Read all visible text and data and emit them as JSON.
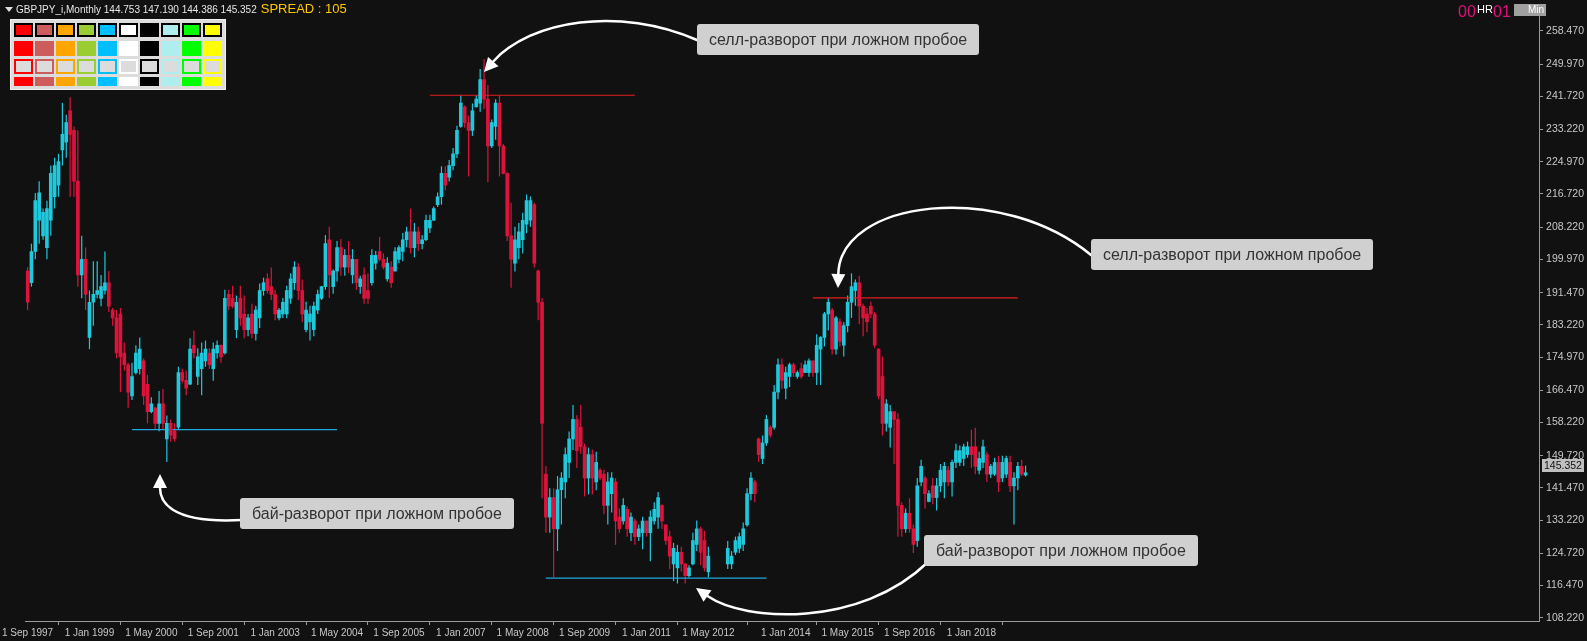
{
  "chart_data": {
    "type": "candlestick",
    "title": "GBPJPY_i,Monthly  144.753 147.190 144.386 145.352",
    "subtitle": "SPREAD : 105",
    "x": [
      "1997-09",
      "1997-10",
      "1997-11",
      "1997-12",
      "1998-01",
      "1998-02",
      "1998-03",
      "1998-04",
      "1998-05",
      "1998-06",
      "1998-07",
      "1998-08",
      "1998-09",
      "1998-10",
      "1998-11",
      "1998-12",
      "1999-01",
      "1999-02",
      "1999-03",
      "1999-04",
      "1999-05",
      "1999-06",
      "1999-07",
      "1999-08",
      "1999-09",
      "1999-10",
      "1999-11",
      "1999-12",
      "2000-01",
      "2000-02",
      "2000-03",
      "2000-04",
      "2000-05",
      "2000-06",
      "2000-07",
      "2000-08",
      "2000-09",
      "2000-10",
      "2000-11",
      "2000-12",
      "2001-01",
      "2001-02",
      "2001-03",
      "2001-04",
      "2001-05",
      "2001-06",
      "2001-07",
      "2001-08",
      "2001-09",
      "2001-10",
      "2001-11",
      "2001-12",
      "2002-01",
      "2002-02",
      "2002-03",
      "2002-04",
      "2002-05",
      "2002-06",
      "2002-07",
      "2002-08",
      "2002-09",
      "2002-10",
      "2002-11",
      "2002-12",
      "2003-01",
      "2003-02",
      "2003-03",
      "2003-04",
      "2003-05",
      "2003-06",
      "2003-07",
      "2003-08",
      "2003-09",
      "2003-10",
      "2003-11",
      "2003-12",
      "2004-01",
      "2004-02",
      "2004-03",
      "2004-04",
      "2004-05",
      "2004-06",
      "2004-07",
      "2004-08",
      "2004-09",
      "2004-10",
      "2004-11",
      "2004-12",
      "2005-01",
      "2005-02",
      "2005-03",
      "2005-04",
      "2005-05",
      "2005-06",
      "2005-07",
      "2005-08",
      "2005-09",
      "2005-10",
      "2005-11",
      "2005-12",
      "2006-01",
      "2006-02",
      "2006-03",
      "2006-04",
      "2006-05",
      "2006-06",
      "2006-07",
      "2006-08",
      "2006-09",
      "2006-10",
      "2006-11",
      "2006-12",
      "2007-01",
      "2007-02",
      "2007-03",
      "2007-04",
      "2007-05",
      "2007-06",
      "2007-07",
      "2007-08",
      "2007-09",
      "2007-10",
      "2007-11",
      "2007-12",
      "2008-01",
      "2008-02",
      "2008-03",
      "2008-04",
      "2008-05",
      "2008-06",
      "2008-07",
      "2008-08",
      "2008-09",
      "2008-10",
      "2008-11",
      "2008-12",
      "2009-01",
      "2009-02",
      "2009-03",
      "2009-04",
      "2009-05",
      "2009-06",
      "2009-07",
      "2009-08",
      "2009-09",
      "2009-10",
      "2009-11",
      "2009-12",
      "2010-01",
      "2010-02",
      "2010-03",
      "2010-04",
      "2010-05",
      "2010-06",
      "2010-07",
      "2010-08",
      "2010-09",
      "2010-10",
      "2010-11",
      "2010-12",
      "2011-01",
      "2011-02",
      "2011-03",
      "2011-04",
      "2011-05",
      "2011-06",
      "2011-07",
      "2011-08",
      "2011-09",
      "2011-10",
      "2011-11",
      "2011-12",
      "2012-01",
      "2012-02",
      "2012-03",
      "2012-04",
      "2012-05",
      "2012-10",
      "2012-11",
      "2012-12",
      "2013-01",
      "2013-02",
      "2013-03",
      "2013-04",
      "2013-05",
      "2013-06",
      "2013-07",
      "2013-08",
      "2013-09",
      "2013-10",
      "2013-11",
      "2013-12",
      "2014-01",
      "2014-02",
      "2014-03",
      "2014-04",
      "2014-05",
      "2014-06",
      "2014-07",
      "2014-08",
      "2014-09",
      "2014-10",
      "2014-11",
      "2014-12",
      "2015-01",
      "2015-02",
      "2015-03",
      "2015-04",
      "2015-05",
      "2015-06",
      "2015-07",
      "2015-08",
      "2015-09",
      "2015-10",
      "2015-11",
      "2015-12",
      "2016-01",
      "2016-02",
      "2016-03",
      "2016-04",
      "2016-05",
      "2016-06",
      "2016-07",
      "2016-08",
      "2016-09",
      "2016-10",
      "2016-11",
      "2016-12",
      "2017-01",
      "2017-02",
      "2017-03",
      "2017-04",
      "2017-05",
      "2017-06",
      "2017-07",
      "2017-08",
      "2017-09",
      "2017-10",
      "2017-11",
      "2017-12",
      "2018-01",
      "2018-02",
      "2018-03",
      "2018-04",
      "2018-05",
      "2018-06",
      "2018-07",
      "2018-08",
      "2018-09",
      "2018-10",
      "2018-11",
      "2018-12",
      "2019-01",
      "2019-02",
      "2019-03"
    ],
    "ohlc": [
      [
        197,
        198,
        187,
        189
      ],
      [
        194,
        204,
        193,
        202
      ],
      [
        202,
        217,
        200,
        215
      ],
      [
        210,
        220,
        204,
        217
      ],
      [
        206,
        213,
        205,
        212
      ],
      [
        203,
        215,
        200,
        213
      ],
      [
        210,
        224,
        206,
        222
      ],
      [
        216,
        226,
        213,
        224
      ],
      [
        219,
        227,
        216,
        225
      ],
      [
        228,
        240,
        224,
        232
      ],
      [
        230,
        237,
        226,
        235
      ],
      [
        238,
        241.5,
        216,
        232
      ],
      [
        233,
        234,
        216,
        220
      ],
      [
        220,
        233,
        193,
        196
      ],
      [
        196,
        206,
        190,
        200
      ],
      [
        200,
        203,
        187,
        191
      ],
      [
        180,
        192,
        177,
        189
      ],
      [
        189,
        199.5,
        183,
        191
      ],
      [
        191,
        199.5,
        190,
        192
      ],
      [
        190,
        196,
        188,
        193
      ],
      [
        192,
        202,
        191,
        194
      ],
      [
        194,
        197,
        186.5,
        188
      ],
      [
        187,
        187.5,
        183,
        185
      ],
      [
        185,
        187,
        174.6,
        176
      ],
      [
        186,
        187.5,
        166,
        175
      ],
      [
        176,
        178.7,
        171.5,
        173
      ],
      [
        173,
        173.5,
        162,
        166
      ],
      [
        165,
        173.5,
        164,
        170
      ],
      [
        171,
        178,
        170.5,
        176
      ],
      [
        172,
        180,
        170.5,
        177
      ],
      [
        174,
        174.6,
        162.7,
        165
      ],
      [
        168,
        170.4,
        158,
        161
      ],
      [
        161,
        164.7,
        160.6,
        163
      ],
      [
        162,
        162.1,
        156.4,
        158
      ],
      [
        158,
        166.3,
        156,
        163
      ],
      [
        163,
        166.8,
        156.4,
        158
      ],
      [
        154,
        160,
        148.1,
        158
      ],
      [
        158,
        159,
        153.3,
        155
      ],
      [
        156,
        158,
        153.3,
        154
      ],
      [
        157,
        172.5,
        156.4,
        171
      ],
      [
        171,
        172,
        168.4,
        169
      ],
      [
        169,
        171.5,
        165.2,
        167
      ],
      [
        168,
        179.8,
        167.8,
        177
      ],
      [
        178,
        181.8,
        174.6,
        176
      ],
      [
        170,
        177.2,
        167.8,
        175
      ],
      [
        172,
        178.7,
        165.2,
        176
      ],
      [
        174,
        179.2,
        172.5,
        177
      ],
      [
        176,
        177.2,
        172,
        173
      ],
      [
        172,
        178.7,
        168.9,
        177
      ],
      [
        176,
        179.2,
        174.6,
        178
      ],
      [
        178,
        178.2,
        173.5,
        175
      ],
      [
        176,
        192.2,
        175.6,
        190
      ],
      [
        191,
        192.2,
        187,
        188
      ],
      [
        190,
        193.2,
        187.5,
        188
      ],
      [
        182,
        190.7,
        179.8,
        189
      ],
      [
        190,
        193.2,
        182.9,
        185
      ],
      [
        186,
        190.7,
        179.8,
        182
      ],
      [
        182,
        186,
        180.3,
        185
      ],
      [
        186,
        188.6,
        179.8,
        181
      ],
      [
        181,
        188.1,
        179.2,
        187
      ],
      [
        185,
        193.8,
        182.4,
        192
      ],
      [
        192,
        195.3,
        190.7,
        194
      ],
      [
        195,
        196.4,
        191.2,
        192
      ],
      [
        193,
        197.9,
        189.6,
        191
      ],
      [
        191,
        192.2,
        184.4,
        186
      ],
      [
        185,
        187.5,
        184.4,
        187
      ],
      [
        186,
        190.1,
        185,
        189
      ],
      [
        186,
        193.2,
        184.9,
        192
      ],
      [
        190,
        196.4,
        188.6,
        195
      ],
      [
        194,
        199.5,
        192.2,
        198
      ],
      [
        198,
        199,
        189.6,
        192
      ],
      [
        192,
        194.8,
        183.9,
        186
      ],
      [
        182,
        189.1,
        181.3,
        187
      ],
      [
        184,
        188.1,
        179.2,
        186
      ],
      [
        182,
        189.1,
        180.3,
        188
      ],
      [
        187,
        192.2,
        186,
        191
      ],
      [
        190,
        193.2,
        189.6,
        193
      ],
      [
        193,
        206.2,
        192.2,
        204
      ],
      [
        205,
        208.3,
        190.1,
        196
      ],
      [
        193,
        197.4,
        191.2,
        197
      ],
      [
        197,
        204.7,
        194.3,
        203
      ],
      [
        203,
        205.2,
        195.8,
        198
      ],
      [
        198,
        202.6,
        195.8,
        201
      ],
      [
        201,
        204.7,
        196.4,
        198
      ],
      [
        196,
        202.6,
        193.8,
        200
      ],
      [
        200,
        200,
        192.2,
        194
      ],
      [
        193,
        195.8,
        191.2,
        195
      ],
      [
        196,
        197.9,
        188.6,
        190
      ],
      [
        192,
        196.4,
        188.6,
        190
      ],
      [
        194,
        202.6,
        193.3,
        201
      ],
      [
        199,
        202.1,
        197.4,
        201
      ],
      [
        202,
        205.7,
        199.5,
        200
      ],
      [
        200,
        201.5,
        197.4,
        198
      ],
      [
        195,
        200.5,
        194.3,
        199
      ],
      [
        198,
        199.5,
        192.7,
        194
      ],
      [
        197,
        203.1,
        196.9,
        202
      ],
      [
        200,
        203.6,
        199,
        203
      ],
      [
        202,
        206.7,
        199.5,
        205
      ],
      [
        205,
        208.3,
        203.1,
        207
      ],
      [
        207,
        213,
        201.5,
        203
      ],
      [
        203,
        209.3,
        200.5,
        207
      ],
      [
        207,
        208.3,
        202.1,
        204
      ],
      [
        204,
        206.2,
        202.6,
        205
      ],
      [
        205,
        211.4,
        204.7,
        210
      ],
      [
        208,
        211.4,
        206.7,
        210
      ],
      [
        210,
        213.5,
        209.8,
        213
      ],
      [
        214,
        217.1,
        213.4,
        216
      ],
      [
        216,
        223.8,
        214,
        222
      ],
      [
        222,
        223.8,
        217.6,
        219
      ],
      [
        221,
        225.4,
        219.9,
        224
      ],
      [
        224,
        228.5,
        222.8,
        227
      ],
      [
        227,
        234.2,
        225.9,
        233
      ],
      [
        234,
        242,
        233.7,
        240
      ],
      [
        239,
        239.4,
        233.7,
        235
      ],
      [
        235,
        236.8,
        221.2,
        233
      ],
      [
        233,
        239.9,
        231.6,
        238
      ],
      [
        239,
        242,
        238.9,
        241
      ],
      [
        240,
        248.7,
        237.8,
        246
      ],
      [
        246,
        251.3,
        238.4,
        241
      ],
      [
        241,
        244.6,
        219.7,
        229
      ],
      [
        229,
        235.8,
        228.5,
        235
      ],
      [
        234,
        241,
        230.6,
        240
      ],
      [
        240,
        242,
        221.2,
        229
      ],
      [
        229,
        229.5,
        221.8,
        222
      ],
      [
        222,
        222.3,
        204.7,
        206
      ],
      [
        206,
        214.5,
        192.7,
        200
      ],
      [
        199,
        208.3,
        196.9,
        205
      ],
      [
        203,
        209.3,
        200,
        207
      ],
      [
        205,
        211.9,
        201.5,
        210
      ],
      [
        209,
        216.6,
        206.7,
        215
      ],
      [
        210,
        216.1,
        208.3,
        215
      ],
      [
        214,
        214.5,
        197.9,
        199
      ],
      [
        197,
        197.4,
        184.4,
        189
      ],
      [
        189,
        190.1,
        138.8,
        158
      ],
      [
        145,
        147.1,
        130,
        134
      ],
      [
        134,
        141.4,
        130,
        139
      ],
      [
        139,
        141.4,
        118.6,
        131
      ],
      [
        131,
        144.5,
        125.3,
        141
      ],
      [
        141,
        145.5,
        132.1,
        144
      ],
      [
        143,
        151.8,
        138.8,
        150
      ],
      [
        148,
        155.9,
        144,
        154
      ],
      [
        154,
        162.7,
        151.2,
        159
      ],
      [
        159,
        160.1,
        146.6,
        151
      ],
      [
        157,
        162.7,
        150.2,
        152
      ],
      [
        152,
        152.8,
        139.3,
        144
      ],
      [
        144,
        151.8,
        139.8,
        150
      ],
      [
        150,
        151.3,
        139.8,
        144
      ],
      [
        143,
        150.7,
        140.9,
        148
      ],
      [
        146,
        146.6,
        143.5,
        144
      ],
      [
        145,
        146.1,
        134.7,
        137
      ],
      [
        137,
        145.5,
        132.1,
        143
      ],
      [
        140,
        145.5,
        135.2,
        144
      ],
      [
        143,
        144,
        126.9,
        133
      ],
      [
        134,
        136.2,
        130,
        131
      ],
      [
        133,
        138.8,
        132.1,
        137
      ],
      [
        136,
        136.7,
        129,
        131
      ],
      [
        130,
        135.2,
        127.9,
        134
      ],
      [
        133,
        133.6,
        126.9,
        129
      ],
      [
        129,
        132.1,
        127.9,
        131
      ],
      [
        130,
        134.1,
        125.8,
        133
      ],
      [
        133,
        133.1,
        129,
        130
      ],
      [
        130,
        135.7,
        122.7,
        134
      ],
      [
        133,
        137.8,
        132.1,
        136
      ],
      [
        134,
        140.4,
        131,
        139
      ],
      [
        137,
        137.3,
        131,
        133
      ],
      [
        132,
        132.1,
        126.9,
        128
      ],
      [
        129,
        130.5,
        120.7,
        124
      ],
      [
        122,
        127.4,
        117.6,
        126
      ],
      [
        121,
        126.9,
        117,
        125
      ],
      [
        125,
        126.4,
        120.1,
        122
      ],
      [
        122,
        122.2,
        117,
        119
      ],
      [
        119,
        121.7,
        118.6,
        121
      ],
      [
        122,
        130,
        121.7,
        128
      ],
      [
        127,
        133.1,
        125.3,
        131
      ],
      [
        131,
        131.5,
        121.7,
        125
      ],
      [
        128,
        130.5,
        120.1,
        121
      ],
      [
        120,
        126.4,
        118.6,
        124
      ],
      [
        122,
        127.9,
        120.7,
        126
      ],
      [
        122,
        125.3,
        120.7,
        124
      ],
      [
        125,
        129,
        124.3,
        128
      ],
      [
        126,
        130,
        124.8,
        129
      ],
      [
        127,
        132.6,
        125.3,
        131
      ],
      [
        132,
        141.4,
        131.5,
        140
      ],
      [
        140,
        145.5,
        138.3,
        144
      ],
      [
        143,
        143.5,
        137.8,
        140
      ],
      [
        154,
        154.4,
        148.1,
        150
      ],
      [
        149,
        154.9,
        147.6,
        153
      ],
      [
        153,
        160.1,
        152.3,
        159
      ],
      [
        157,
        157.5,
        154.4,
        155
      ],
      [
        157,
        167.8,
        156.4,
        166
      ],
      [
        166,
        174.6,
        164.2,
        173
      ],
      [
        173,
        174.6,
        166.8,
        169
      ],
      [
        167,
        172.5,
        164.2,
        171
      ],
      [
        170,
        173.5,
        167.3,
        173
      ],
      [
        173,
        173.5,
        169.9,
        171
      ],
      [
        170,
        171.5,
        169.4,
        171
      ],
      [
        172,
        173.5,
        169.4,
        170
      ],
      [
        171,
        174.1,
        170.9,
        173
      ],
      [
        171,
        174.6,
        169.9,
        174
      ],
      [
        174,
        174.1,
        169.9,
        171
      ],
      [
        171,
        180.8,
        167.8,
        178
      ],
      [
        177,
        180.3,
        167.8,
        180
      ],
      [
        180,
        186.5,
        177.7,
        186
      ],
      [
        186,
        190.1,
        181.8,
        189
      ],
      [
        187,
        187.5,
        175.6,
        177
      ],
      [
        177,
        185.5,
        175.6,
        185
      ],
      [
        184,
        184.9,
        177.7,
        179
      ],
      [
        178,
        183.9,
        175.1,
        183
      ],
      [
        183,
        190.7,
        181.3,
        189
      ],
      [
        189,
        196.4,
        185,
        193
      ],
      [
        192,
        194.8,
        188.1,
        194
      ],
      [
        194,
        195.8,
        183.4,
        188
      ],
      [
        188,
        188.6,
        180.3,
        185
      ],
      [
        186,
        187.5,
        181.3,
        184
      ],
      [
        188,
        189.1,
        185,
        186
      ],
      [
        186,
        186.5,
        177.2,
        178
      ],
      [
        177,
        177.2,
        164.2,
        165
      ],
      [
        170,
        175.1,
        154.9,
        158
      ],
      [
        158,
        164.2,
        155.9,
        163
      ],
      [
        157,
        162.7,
        151.8,
        161
      ],
      [
        161,
        161.1,
        147.6,
        159
      ],
      [
        159,
        160.6,
        129,
        137
      ],
      [
        137,
        137.8,
        129,
        131
      ],
      [
        131,
        136.2,
        130,
        135
      ],
      [
        135,
        138.8,
        130,
        131
      ],
      [
        131,
        132.1,
        124.8,
        127
      ],
      [
        128,
        144,
        126.4,
        142
      ],
      [
        143,
        148.7,
        141.9,
        147
      ],
      [
        144,
        144.5,
        136.2,
        140
      ],
      [
        138,
        140.9,
        137.8,
        140
      ],
      [
        142,
        144,
        137.3,
        139
      ],
      [
        139,
        144,
        135.7,
        142
      ],
      [
        142,
        147.6,
        140.4,
        146
      ],
      [
        143,
        148.1,
        138.8,
        147
      ],
      [
        146,
        147.1,
        141.9,
        143
      ],
      [
        143,
        148.7,
        139.3,
        148
      ],
      [
        148,
        152.8,
        146.6,
        151
      ],
      [
        148,
        152.3,
        147.1,
        151
      ],
      [
        149,
        152.8,
        147.1,
        152
      ],
      [
        150,
        153.3,
        149.2,
        152
      ],
      [
        152,
        156.4,
        146.6,
        150
      ],
      [
        152,
        156.9,
        145,
        147
      ],
      [
        146,
        150.7,
        145,
        149
      ],
      [
        148,
        153.8,
        146.6,
        152
      ],
      [
        150,
        150.7,
        143,
        145
      ],
      [
        145,
        147.6,
        144,
        147
      ],
      [
        145,
        149.2,
        144.5,
        148
      ],
      [
        148,
        149.7,
        140.4,
        143
      ],
      [
        144,
        149.7,
        143,
        148
      ],
      [
        145,
        149.7,
        144,
        149
      ],
      [
        148,
        149.7,
        140.4,
        142
      ],
      [
        142,
        145.5,
        132.1,
        144
      ],
      [
        144,
        148.1,
        140.9,
        147
      ],
      [
        147,
        148.7,
        144.5,
        145
      ],
      [
        144.753,
        147.19,
        144.386,
        145.352
      ]
    ],
    "colors": [
      "#dc143c",
      "#20c8dc",
      "#20c8dc",
      "#20c8dc",
      "#20c8dc",
      "#20c8dc",
      "#20c8dc",
      "#20c8dc",
      "#20c8dc",
      "#20c8dc",
      "#20c8dc",
      "#dc143c",
      "#dc143c",
      "#dc143c",
      "#20c8dc",
      "#dc143c",
      "#20c8dc",
      "#20c8dc",
      "#20c8dc",
      "#20c8dc",
      "#20c8dc",
      "#dc143c",
      "#dc143c",
      "#dc143c",
      "#dc143c",
      "#dc143c",
      "#dc143c",
      "#20c8dc",
      "#20c8dc",
      "#20c8dc",
      "#dc143c",
      "#dc143c",
      "#20c8dc",
      "#dc143c",
      "#20c8dc",
      "#dc143c",
      "#20c8dc",
      "#dc143c",
      "#dc143c",
      "#20c8dc",
      "#dc143c",
      "#dc143c",
      "#20c8dc",
      "#dc143c",
      "#20c8dc",
      "#20c8dc",
      "#20c8dc",
      "#dc143c",
      "#20c8dc",
      "#20c8dc",
      "#dc143c",
      "#20c8dc",
      "#dc143c",
      "#dc143c",
      "#20c8dc",
      "#dc143c",
      "#dc143c",
      "#20c8dc",
      "#dc143c",
      "#20c8dc",
      "#20c8dc",
      "#20c8dc",
      "#dc143c",
      "#dc143c",
      "#dc143c",
      "#20c8dc",
      "#20c8dc",
      "#20c8dc",
      "#20c8dc",
      "#20c8dc",
      "#dc143c",
      "#dc143c",
      "#20c8dc",
      "#20c8dc",
      "#20c8dc",
      "#20c8dc",
      "#20c8dc",
      "#20c8dc",
      "#dc143c",
      "#20c8dc",
      "#20c8dc",
      "#dc143c",
      "#20c8dc",
      "#dc143c",
      "#20c8dc",
      "#dc143c",
      "#20c8dc",
      "#dc143c",
      "#dc143c",
      "#20c8dc",
      "#20c8dc",
      "#dc143c",
      "#dc143c",
      "#20c8dc",
      "#dc143c",
      "#20c8dc",
      "#20c8dc",
      "#20c8dc",
      "#20c8dc",
      "#dc143c",
      "#20c8dc",
      "#dc143c",
      "#20c8dc",
      "#20c8dc",
      "#20c8dc",
      "#20c8dc",
      "#20c8dc",
      "#20c8dc",
      "#dc143c",
      "#20c8dc",
      "#20c8dc",
      "#20c8dc",
      "#20c8dc",
      "#dc143c",
      "#dc143c",
      "#20c8dc",
      "#20c8dc",
      "#20c8dc",
      "#dc143c",
      "#dc143c",
      "#20c8dc",
      "#20c8dc",
      "#dc143c",
      "#dc143c",
      "#dc143c",
      "#dc143c",
      "#20c8dc",
      "#20c8dc",
      "#20c8dc",
      "#20c8dc",
      "#20c8dc",
      "#dc143c",
      "#dc143c",
      "#dc143c",
      "#dc143c",
      "#20c8dc",
      "#dc143c",
      "#20c8dc",
      "#20c8dc",
      "#20c8dc",
      "#20c8dc",
      "#20c8dc",
      "#dc143c",
      "#dc143c",
      "#dc143c",
      "#20c8dc",
      "#dc143c",
      "#20c8dc",
      "#dc143c",
      "#dc143c",
      "#20c8dc",
      "#20c8dc",
      "#dc143c",
      "#dc143c",
      "#20c8dc",
      "#dc143c",
      "#20c8dc",
      "#dc143c",
      "#20c8dc",
      "#20c8dc",
      "#dc143c",
      "#20c8dc",
      "#20c8dc",
      "#20c8dc",
      "#dc143c",
      "#dc143c",
      "#dc143c",
      "#20c8dc",
      "#20c8dc",
      "#dc143c",
      "#dc143c",
      "#20c8dc",
      "#20c8dc",
      "#20c8dc",
      "#dc143c",
      "#dc143c",
      "#20c8dc",
      "#20c8dc",
      "#20c8dc",
      "#20c8dc",
      "#20c8dc",
      "#20c8dc",
      "#20c8dc",
      "#20c8dc",
      "#dc143c",
      "#dc143c",
      "#20c8dc",
      "#20c8dc",
      "#dc143c",
      "#20c8dc",
      "#20c8dc",
      "#dc143c",
      "#20c8dc",
      "#20c8dc",
      "#dc143c",
      "#20c8dc",
      "#dc143c",
      "#20c8dc",
      "#20c8dc",
      "#dc143c",
      "#20c8dc",
      "#20c8dc",
      "#20c8dc",
      "#20c8dc",
      "#dc143c",
      "#20c8dc",
      "#dc143c",
      "#20c8dc",
      "#20c8dc",
      "#20c8dc",
      "#20c8dc",
      "#dc143c",
      "#dc143c",
      "#dc143c",
      "#dc143c",
      "#dc143c",
      "#dc143c",
      "#dc143c",
      "#20c8dc",
      "#20c8dc",
      "#dc143c",
      "#dc143c",
      "#dc143c",
      "#20c8dc",
      "#dc143c",
      "#dc143c",
      "#20c8dc",
      "#20c8dc",
      "#dc143c",
      "#20c8dc",
      "#dc143c",
      "#20c8dc",
      "#20c8dc",
      "#20c8dc",
      "#dc143c",
      "#20c8dc",
      "#20c8dc",
      "#20c8dc",
      "#20c8dc",
      "#20c8dc",
      "#dc143c",
      "#dc143c",
      "#20c8dc",
      "#20c8dc",
      "#dc143c",
      "#20c8dc",
      "#20c8dc",
      "#dc143c",
      "#20c8dc",
      "#20c8dc",
      "#dc143c",
      "#20c8dc",
      "#20c8dc",
      "#dc143c",
      "#20c8dc"
    ],
    "series": [
      {
        "type": "line",
        "color": "#e01e1e",
        "x": [
          "2006-05",
          "2010-10"
        ],
        "values": [
          242.0,
          242.0
        ]
      },
      {
        "type": "line",
        "color": "#20a8e0",
        "x": [
          "1999-12",
          "2004-05"
        ],
        "values": [
          156.4,
          156.4
        ]
      },
      {
        "type": "line",
        "color": "#e01e1e",
        "x": [
          "2014-08",
          "2019-01"
        ],
        "values": [
          190.1,
          190.1
        ]
      },
      {
        "type": "line",
        "color": "#20a8e0",
        "x": [
          "2008-11",
          "2013-08"
        ],
        "values": [
          118.4,
          118.4
        ]
      }
    ],
    "xlim": [
      "1997-08-16",
      "2030-03-24"
    ],
    "xticks": [
      {
        "value": "1997-09-01",
        "label": "1 Sep 1997"
      },
      {
        "value": "1999-01-01",
        "label": "1 Jan 1999"
      },
      {
        "value": "2000-05-01",
        "label": "1 May 2000"
      },
      {
        "value": "2001-09-01",
        "label": "1 Sep 2001"
      },
      {
        "value": "2003-01-01",
        "label": "1 Jan 2003"
      },
      {
        "value": "2004-05-01",
        "label": "1 May 2004"
      },
      {
        "value": "2005-09-01",
        "label": "1 Sep 2005"
      },
      {
        "value": "2007-01-01",
        "label": "1 Jan 2007"
      },
      {
        "value": "2008-05-01",
        "label": "1 May 2008"
      },
      {
        "value": "2009-09-01",
        "label": "1 Sep 2009"
      },
      {
        "value": "2011-01-01",
        "label": "1 Jan 2011"
      },
      {
        "value": "2012-05-01",
        "label": "1 May 2012"
      },
      {
        "value": "2014-01-01",
        "label": "1 Jan 2014"
      },
      {
        "value": "2015-05-01",
        "label": "1 May 2015"
      },
      {
        "value": "2016-09-01",
        "label": "1 Sep 2016"
      },
      {
        "value": "2018-01-01",
        "label": "1 Jan 2018"
      }
    ],
    "ylim": [
      107.4,
      264.0
    ],
    "yticks": [
      {
        "value": 108.22,
        "label": "108.220"
      },
      {
        "value": 116.47,
        "label": "116.470"
      },
      {
        "value": 124.72,
        "label": "124.720"
      },
      {
        "value": 133.22,
        "label": "133.220"
      },
      {
        "value": 141.47,
        "label": "141.470"
      },
      {
        "value": 149.72,
        "label": "149.720"
      },
      {
        "value": 158.22,
        "label": "158.220"
      },
      {
        "value": 166.47,
        "label": "166.470"
      },
      {
        "value": 174.97,
        "label": "174.970"
      },
      {
        "value": 183.22,
        "label": "183.220"
      },
      {
        "value": 191.47,
        "label": "191.470"
      },
      {
        "value": 199.97,
        "label": "199.970"
      },
      {
        "value": 208.22,
        "label": "208.220"
      },
      {
        "value": 216.72,
        "label": "216.720"
      },
      {
        "value": 224.97,
        "label": "224.970"
      },
      {
        "value": 233.22,
        "label": "233.220"
      },
      {
        "value": 241.72,
        "label": "241.720"
      },
      {
        "value": 249.97,
        "label": "249.970"
      },
      {
        "value": 258.47,
        "label": "258.470"
      }
    ],
    "annotations": [
      "селл-разворот при ложном пробое",
      "селл-разворот при ложном пробое",
      "бай-разворот при ложном пробое",
      "бай-разворот при ложном пробое",
      "145.352",
      "00",
      "HR",
      "01",
      "Min"
    ]
  }
}
